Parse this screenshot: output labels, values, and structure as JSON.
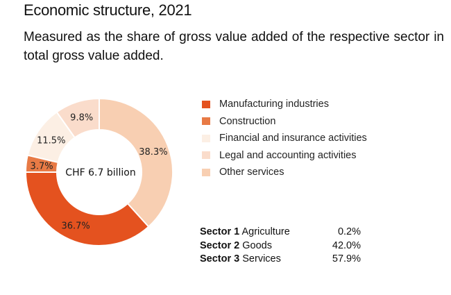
{
  "header": {
    "title": "Economic structure, 2021",
    "subtitle": "Measured as the share of gross value added of the respective sector in total gross value added."
  },
  "chart_data": {
    "type": "pie",
    "variant": "donut",
    "title": "Economic structure, 2021",
    "center_label": "CHF 6.7 billion",
    "start": "top",
    "direction": "clockwise",
    "slices": [
      {
        "name": "Other services",
        "value": 38.3,
        "label": "38.3%",
        "color": "#f8cfb2"
      },
      {
        "name": "Manufacturing industries",
        "value": 36.7,
        "label": "36.7%",
        "color": "#e4521f"
      },
      {
        "name": "Construction",
        "value": 3.7,
        "label": "3.7%",
        "color": "#e87a45"
      },
      {
        "name": "Financial and insurance activities",
        "value": 11.5,
        "label": "11.5%",
        "color": "#fcefe4"
      },
      {
        "name": "Legal and accounting activities",
        "value": 9.8,
        "label": "9.8%",
        "color": "#fadccb"
      }
    ],
    "legend": {
      "placement": "right",
      "entries": [
        {
          "label": "Manufacturing industries",
          "color": "#e4521f"
        },
        {
          "label": "Construction",
          "color": "#e87a45"
        },
        {
          "label": "Financial and insurance activities",
          "color": "#fcefe4"
        },
        {
          "label": "Legal and accounting activities",
          "color": "#fadccb"
        },
        {
          "label": "Other services",
          "color": "#f8cfb2"
        }
      ]
    }
  },
  "sectors": [
    {
      "name": "Sector 1",
      "label": "Agriculture",
      "value": "0.2%"
    },
    {
      "name": "Sector 2",
      "label": "Goods",
      "value": "42.0%"
    },
    {
      "name": "Sector 3",
      "label": "Services",
      "value": "57.9%"
    }
  ]
}
